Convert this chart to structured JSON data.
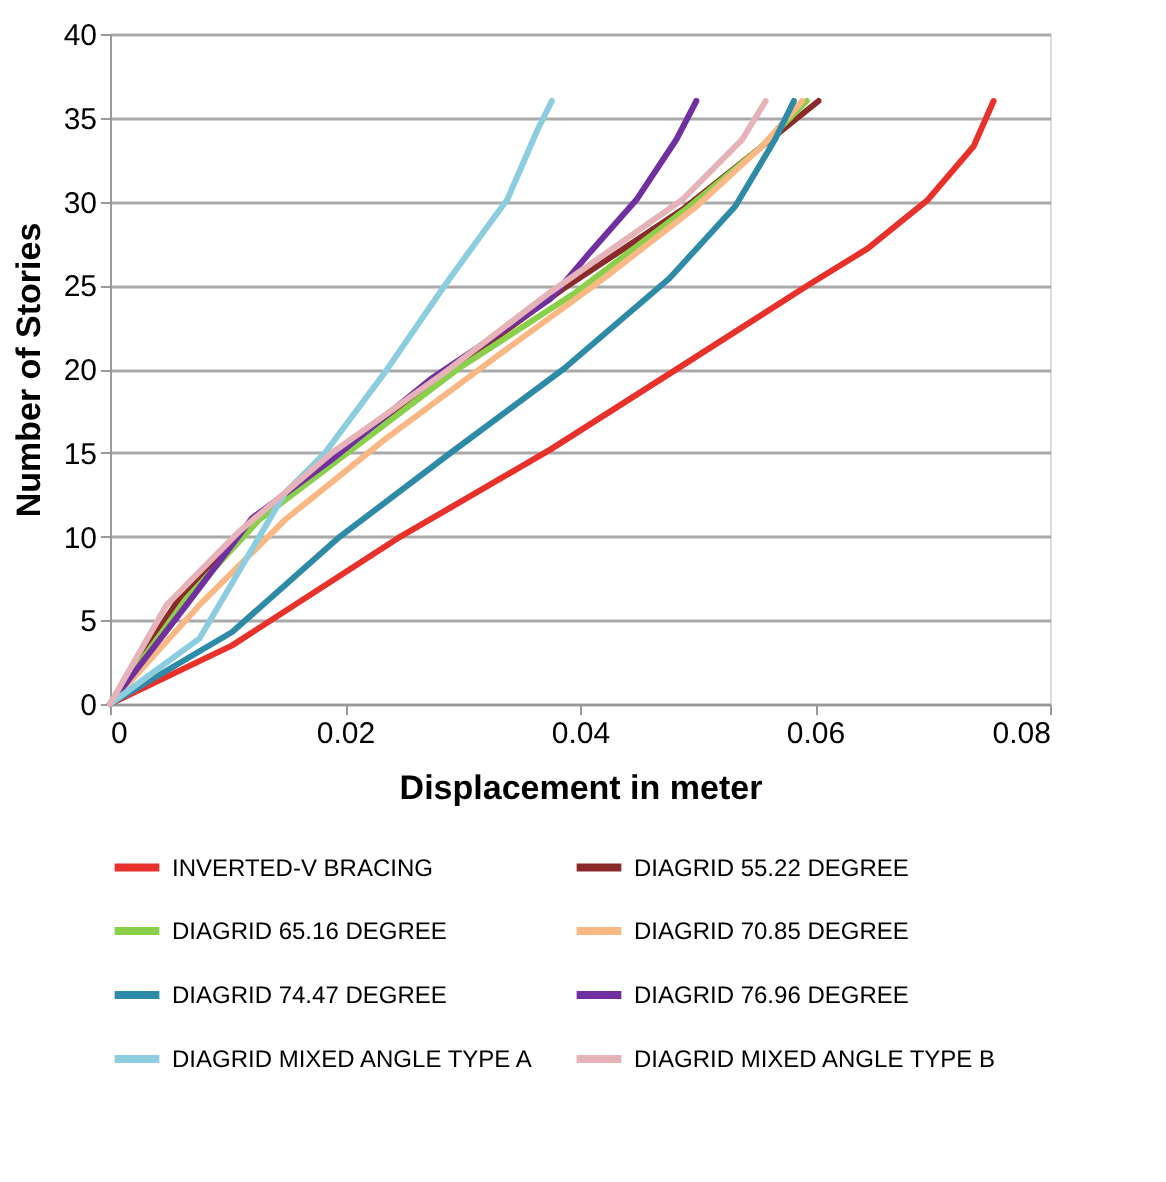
{
  "chart_data": {
    "type": "line",
    "xlabel": "Displacement in meter",
    "ylabel": "Number of Stories",
    "xlim": [
      0,
      0.08
    ],
    "xticks": [
      0,
      0.02,
      0.04,
      0.06,
      0.08
    ],
    "ylim": [
      0,
      40
    ],
    "yticks": [
      0,
      5,
      10,
      15,
      20,
      25,
      30,
      35,
      40
    ],
    "grid": "y",
    "legend": "bottom",
    "marker": "none",
    "line_style": "solid",
    "series": [
      {
        "name": "INVERTED-V BRACING",
        "color": "#e8312a",
        "x": [
          0,
          0.0104,
          0.0245,
          0.0375,
          0.0487,
          0.0594,
          0.0645,
          0.0696,
          0.0735,
          0.0752
        ],
        "values": [
          0,
          3.5,
          9.9,
          15.2,
          20.2,
          25,
          27.2,
          30.1,
          33.3,
          36
        ]
      },
      {
        "name": "DIAGRID 55.22 DEGREE",
        "color": "#8b2a2a",
        "x": [
          0,
          0.0059,
          0.0121,
          0.0194,
          0.0285,
          0.0386,
          0.0487,
          0.0555,
          0.0603
        ],
        "values": [
          0,
          6.3,
          10.7,
          15,
          null,
          24.8,
          29.5,
          33.3,
          36
        ]
      },
      {
        "name": "DIAGRID 65.16 DEGREE",
        "color": "#8bd04a",
        "x": [
          0,
          0.0065,
          0.0127,
          0.0206,
          0.0296,
          0.0397,
          0.0493,
          0.0555,
          0.0593
        ],
        "values": [
          0,
          6.3,
          11,
          15.2,
          20,
          24.6,
          29.7,
          33.3,
          36
        ]
      },
      {
        "name": "DIAGRID 70.85 DEGREE",
        "color": "#f9b884",
        "x": [
          0,
          0.0076,
          0.0149,
          0.0234,
          0.033,
          0.042,
          0.0499,
          0.0555,
          0.0589
        ],
        "values": [
          0,
          5.9,
          11,
          15.8,
          20.8,
          25.4,
          29.7,
          33.3,
          36
        ]
      },
      {
        "name": "DIAGRID 74.47 DEGREE",
        "color": "#2e8ba8",
        "x": [
          0,
          0.0104,
          0.0194,
          0.029,
          0.0386,
          0.0476,
          0.0532,
          0.0566,
          0.0582
        ],
        "values": [
          0,
          4.3,
          9.9,
          15,
          20,
          25.4,
          29.7,
          33.7,
          36
        ]
      },
      {
        "name": "DIAGRID 76.96 DEGREE",
        "color": "#7030a0",
        "x": [
          0,
          0.0065,
          0.0121,
          0.0189,
          0.0273,
          0.0375,
          0.0409,
          0.0448,
          0.0482,
          0.0499
        ],
        "values": [
          0,
          5.9,
          11.1,
          14.6,
          19.4,
          24.2,
          27,
          30.1,
          33.7,
          36
        ]
      },
      {
        "name": "DIAGRID MIXED ANGLE TYPE A",
        "color": "#8dcde0",
        "x": [
          0,
          0.0076,
          0.0149,
          0.0183,
          0.0234,
          0.0285,
          0.0318,
          0.0338,
          0.0364,
          0.0376
        ],
        "values": [
          0,
          3.9,
          12.6,
          15,
          19.8,
          25,
          28.2,
          30.1,
          34.3,
          36
        ]
      },
      {
        "name": "DIAGRID MIXED ANGLE TYPE B",
        "color": "#e6b4b8",
        "x": [
          0,
          0.0048,
          0.011,
          0.0189,
          0.0285,
          0.0375,
          0.0487,
          0.0538,
          0.0558
        ],
        "values": [
          0,
          5.9,
          10.3,
          15,
          19.8,
          24.6,
          30.1,
          33.7,
          36
        ]
      }
    ]
  }
}
